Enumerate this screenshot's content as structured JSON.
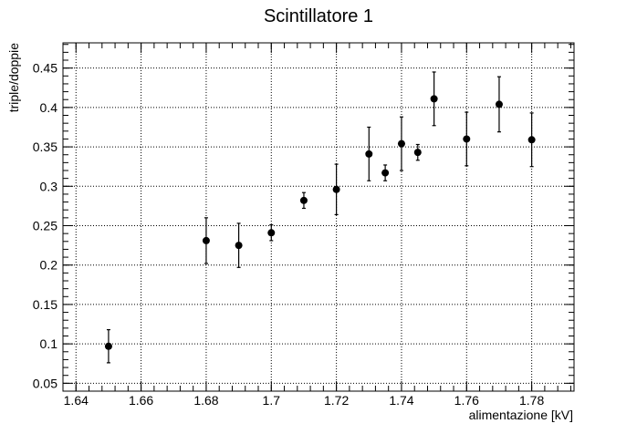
{
  "chart_data": {
    "type": "scatter",
    "title": "Scintillatore 1",
    "xlabel": "alimentazione [kV]",
    "ylabel": "triple/doppie",
    "xlim": [
      1.636,
      1.793
    ],
    "ylim": [
      0.04,
      0.482
    ],
    "grid": true,
    "x_ticks": [
      1.64,
      1.66,
      1.68,
      1.7,
      1.72,
      1.74,
      1.76,
      1.78
    ],
    "x_tick_labels": [
      "1.64",
      "1.66",
      "1.68",
      "1.7",
      "1.72",
      "1.74",
      "1.76",
      "1.78"
    ],
    "y_ticks": [
      0.05,
      0.1,
      0.15,
      0.2,
      0.25,
      0.3,
      0.35,
      0.4,
      0.45
    ],
    "y_tick_labels": [
      "0.05",
      "0.1",
      "0.15",
      "0.2",
      "0.25",
      "0.3",
      "0.35",
      "0.4",
      "0.45"
    ],
    "color": "#000000",
    "points": [
      {
        "x": 1.65,
        "y": 0.097,
        "yerr": 0.021
      },
      {
        "x": 1.68,
        "y": 0.231,
        "yerr": 0.029
      },
      {
        "x": 1.69,
        "y": 0.225,
        "yerr": 0.028
      },
      {
        "x": 1.7,
        "y": 0.241,
        "yerr": 0.01
      },
      {
        "x": 1.71,
        "y": 0.282,
        "yerr": 0.01
      },
      {
        "x": 1.72,
        "y": 0.296,
        "yerr": 0.032
      },
      {
        "x": 1.73,
        "y": 0.341,
        "yerr": 0.034
      },
      {
        "x": 1.735,
        "y": 0.317,
        "yerr": 0.01
      },
      {
        "x": 1.74,
        "y": 0.354,
        "yerr": 0.034
      },
      {
        "x": 1.745,
        "y": 0.343,
        "yerr": 0.01
      },
      {
        "x": 1.75,
        "y": 0.411,
        "yerr": 0.034
      },
      {
        "x": 1.76,
        "y": 0.36,
        "yerr": 0.034
      },
      {
        "x": 1.77,
        "y": 0.404,
        "yerr": 0.035
      },
      {
        "x": 1.78,
        "y": 0.359,
        "yerr": 0.034
      }
    ]
  }
}
